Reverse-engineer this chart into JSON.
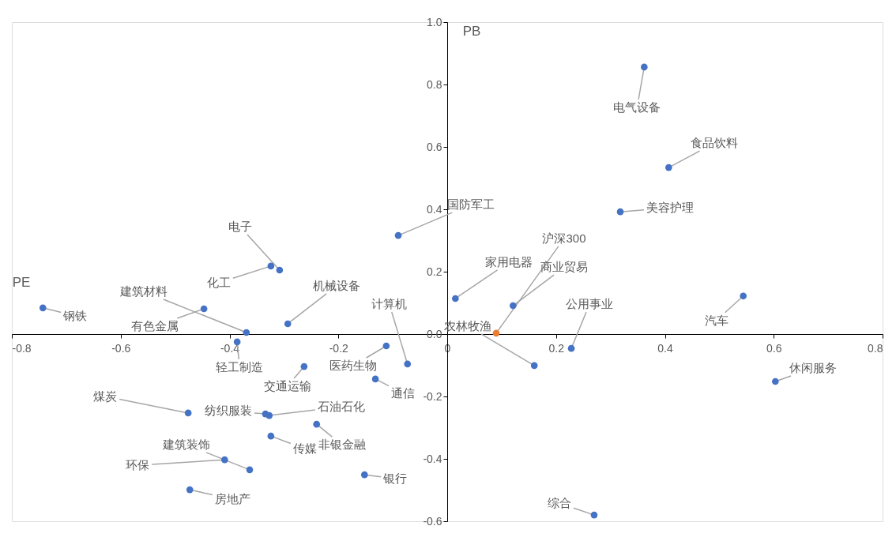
{
  "chart_data": {
    "type": "scatter",
    "xlabel": "PE",
    "ylabel": "PB",
    "xlim": [
      -0.8,
      0.8
    ],
    "xticks": [
      -0.8,
      -0.6,
      -0.4,
      -0.2,
      0,
      0.2,
      0.4,
      0.6,
      0.8
    ],
    "ylim": [
      -0.6,
      1.0
    ],
    "yticks": [
      {
        "value": -0.6,
        "label": "-0.6"
      },
      {
        "value": -0.4,
        "label": "-0.4"
      },
      {
        "value": -0.2,
        "label": "-0.2"
      },
      {
        "value": 0,
        "label": "0.0"
      },
      {
        "value": 0.2,
        "label": "0.2"
      },
      {
        "value": 0.4,
        "label": "0.4"
      },
      {
        "value": 0.6,
        "label": "0.6"
      },
      {
        "value": 0.8,
        "label": "0.8"
      },
      {
        "value": 1,
        "label": "1.0"
      }
    ],
    "grid": false,
    "marker": "circle",
    "series": [
      {
        "color": "#4472c4",
        "x": [
          -0.743,
          -0.447,
          -0.369,
          -0.324,
          -0.308,
          -0.293,
          -0.386,
          -0.09,
          -0.073,
          -0.112,
          -0.263,
          -0.132,
          -0.476,
          -0.334,
          -0.327,
          -0.24,
          -0.324,
          -0.409,
          -0.363,
          -0.473,
          -0.152,
          0.015,
          0.121,
          0.16,
          0.228,
          0.318,
          0.544,
          0.603,
          0.362,
          0.407,
          0.27
        ],
        "values": [
          0.084,
          0.081,
          0.005,
          0.218,
          0.205,
          0.033,
          -0.025,
          0.316,
          -0.096,
          -0.038,
          -0.104,
          -0.144,
          -0.253,
          -0.256,
          -0.261,
          -0.289,
          -0.327,
          -0.403,
          -0.435,
          -0.499,
          -0.451,
          0.114,
          0.091,
          -0.101,
          -0.046,
          0.392,
          0.122,
          -0.152,
          0.856,
          0.534,
          -0.58
        ]
      },
      {
        "color": "#ed7d31",
        "x": [
          0.09
        ],
        "values": [
          0.003
        ]
      }
    ],
    "annotations": [
      {
        "text": "钢铁",
        "x": -0.743,
        "y": 0.084
      },
      {
        "text": "有色金属",
        "x": -0.447,
        "y": 0.081
      },
      {
        "text": "建筑材料",
        "x": -0.369,
        "y": 0.005
      },
      {
        "text": "化工",
        "x": -0.324,
        "y": 0.218
      },
      {
        "text": "电子",
        "x": -0.308,
        "y": 0.205
      },
      {
        "text": "机械设备",
        "x": -0.293,
        "y": 0.033
      },
      {
        "text": "轻工制造",
        "x": -0.386,
        "y": -0.025
      },
      {
        "text": "国防军工",
        "x": -0.09,
        "y": 0.316
      },
      {
        "text": "计算机",
        "x": -0.073,
        "y": -0.096
      },
      {
        "text": "医药生物",
        "x": -0.112,
        "y": -0.038
      },
      {
        "text": "交通运输",
        "x": -0.263,
        "y": -0.104
      },
      {
        "text": "通信",
        "x": -0.132,
        "y": -0.144
      },
      {
        "text": "煤炭",
        "x": -0.476,
        "y": -0.253
      },
      {
        "text": "纺织服装",
        "x": -0.334,
        "y": -0.256
      },
      {
        "text": "石油石化",
        "x": -0.327,
        "y": -0.261
      },
      {
        "text": "非银金融",
        "x": -0.24,
        "y": -0.289
      },
      {
        "text": "传媒",
        "x": -0.324,
        "y": -0.327
      },
      {
        "text": "环保",
        "x": -0.409,
        "y": -0.403
      },
      {
        "text": "建筑装饰",
        "x": -0.363,
        "y": -0.435
      },
      {
        "text": "房地产",
        "x": -0.473,
        "y": -0.499
      },
      {
        "text": "银行",
        "x": -0.152,
        "y": -0.451
      },
      {
        "text": "家用电器",
        "x": 0.015,
        "y": 0.114
      },
      {
        "text": "商业贸易",
        "x": 0.121,
        "y": 0.091
      },
      {
        "text": "沪深300",
        "x": 0.09,
        "y": 0.003
      },
      {
        "text": "农林牧渔",
        "x": 0.16,
        "y": -0.101
      },
      {
        "text": "公用事业",
        "x": 0.228,
        "y": -0.046
      },
      {
        "text": "美容护理",
        "x": 0.318,
        "y": 0.392
      },
      {
        "text": "汽车",
        "x": 0.544,
        "y": 0.122
      },
      {
        "text": "休闲服务",
        "x": 0.603,
        "y": -0.152
      },
      {
        "text": "电气设备",
        "x": 0.362,
        "y": 0.856
      },
      {
        "text": "食品饮料",
        "x": 0.407,
        "y": 0.534
      },
      {
        "text": "综合",
        "x": 0.27,
        "y": -0.58
      }
    ]
  }
}
